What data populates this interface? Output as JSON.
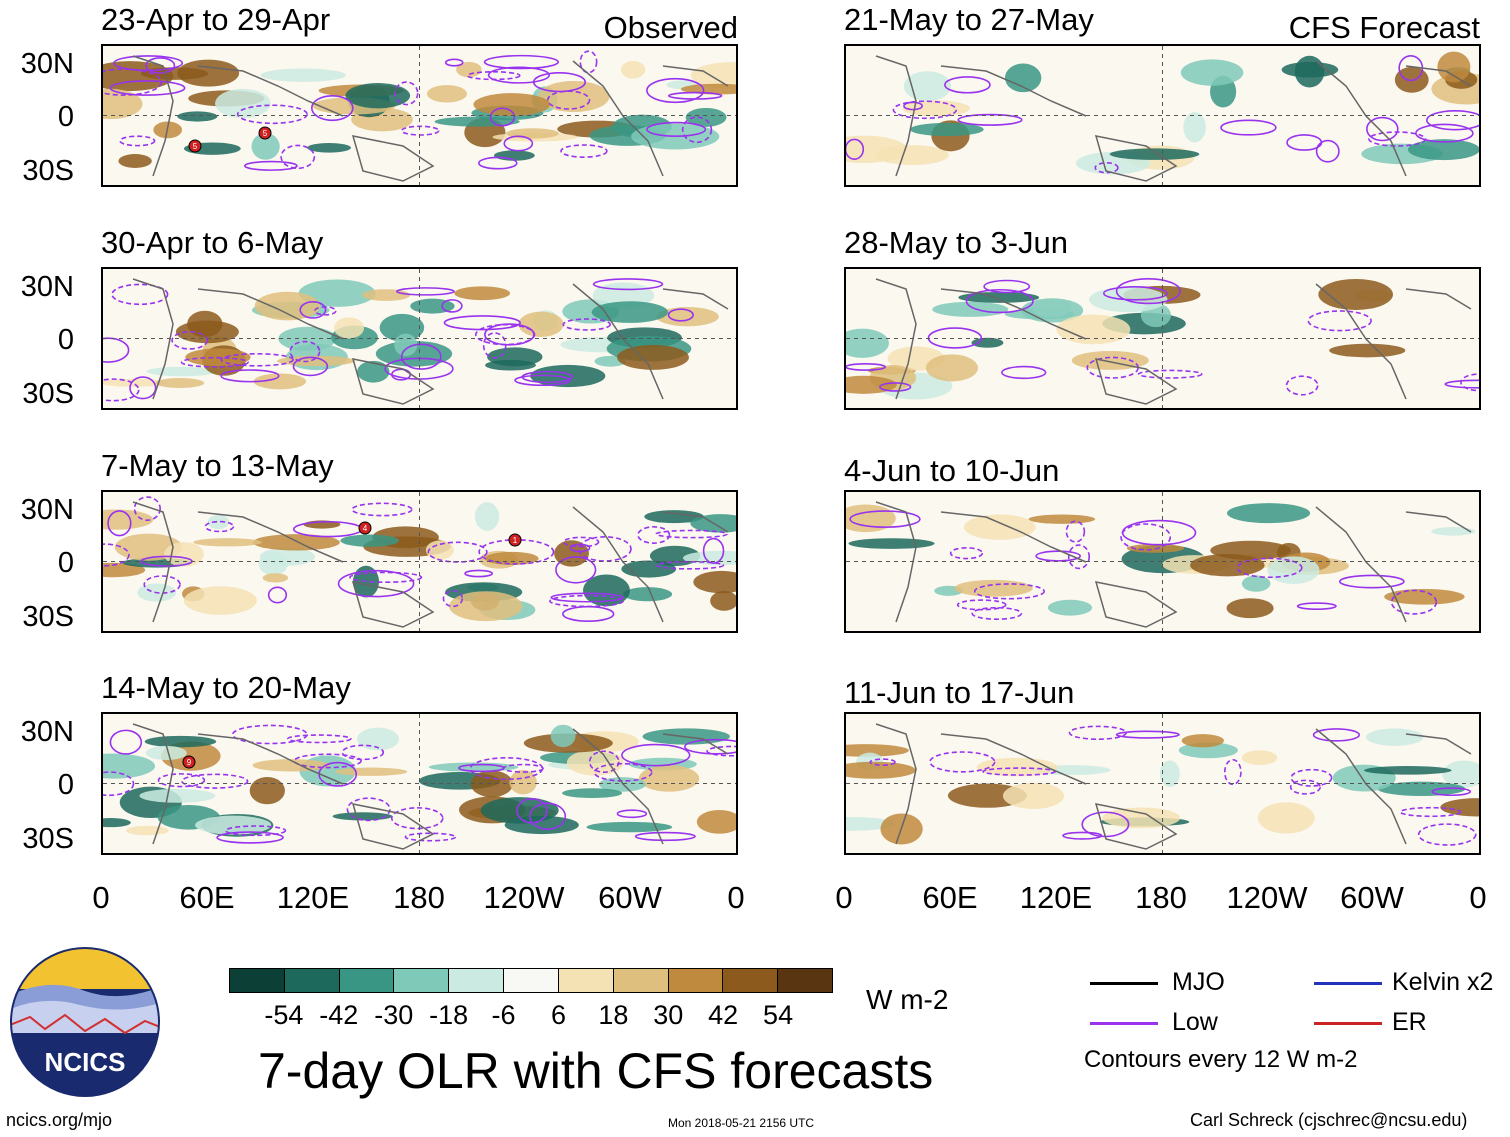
{
  "observed": {
    "label": "Observed",
    "panels": [
      {
        "title": "23-Apr to 29-Apr",
        "markers": [
          "5",
          "5"
        ]
      },
      {
        "title": "30-Apr to 6-May",
        "markers": []
      },
      {
        "title": "7-May to 13-May",
        "markers": [
          "4",
          "1"
        ]
      },
      {
        "title": "14-May to 20-May",
        "markers": [
          "9"
        ]
      }
    ]
  },
  "forecast": {
    "label": "CFS Forecast",
    "panels": [
      {
        "title": "21-May to 27-May"
      },
      {
        "title": "28-May to 3-Jun"
      },
      {
        "title": "4-Jun to 10-Jun"
      },
      {
        "title": "11-Jun to 17-Jun"
      }
    ]
  },
  "axes": {
    "lat_labels": [
      "30N",
      "0",
      "30S"
    ],
    "lon_labels": [
      "0",
      "60E",
      "120E",
      "180",
      "120W",
      "60W",
      "0"
    ]
  },
  "colorbar": {
    "labels": [
      "-54",
      "-42",
      "-30",
      "-18",
      "-6",
      "6",
      "18",
      "30",
      "42",
      "54"
    ],
    "colors": [
      "#0c3f35",
      "#1d6a5d",
      "#3a9684",
      "#7fc9b8",
      "#cbebe2",
      "#f8f8f5",
      "#f4e2b4",
      "#dfbf7e",
      "#bf8a3d",
      "#8c5a1c",
      "#5a3512"
    ],
    "units": "W m-2"
  },
  "title": "7-day OLR with CFS forecasts",
  "legend": {
    "items": [
      {
        "label": "MJO",
        "color": "#000000"
      },
      {
        "label": "Kelvin x2",
        "color": "#2233bb"
      },
      {
        "label": "Low",
        "color": "#9933ee"
      },
      {
        "label": "ER",
        "color": "#cc2222"
      }
    ],
    "contour_note": "Contours every 12 W m-2"
  },
  "logo": {
    "text": "NCICS"
  },
  "footer": {
    "url": "ncics.org/mjo",
    "timestamp": "Mon 2018-05-21 2156 UTC",
    "credit": "Carl Schreck (cjschrec@ncsu.edu)"
  }
}
